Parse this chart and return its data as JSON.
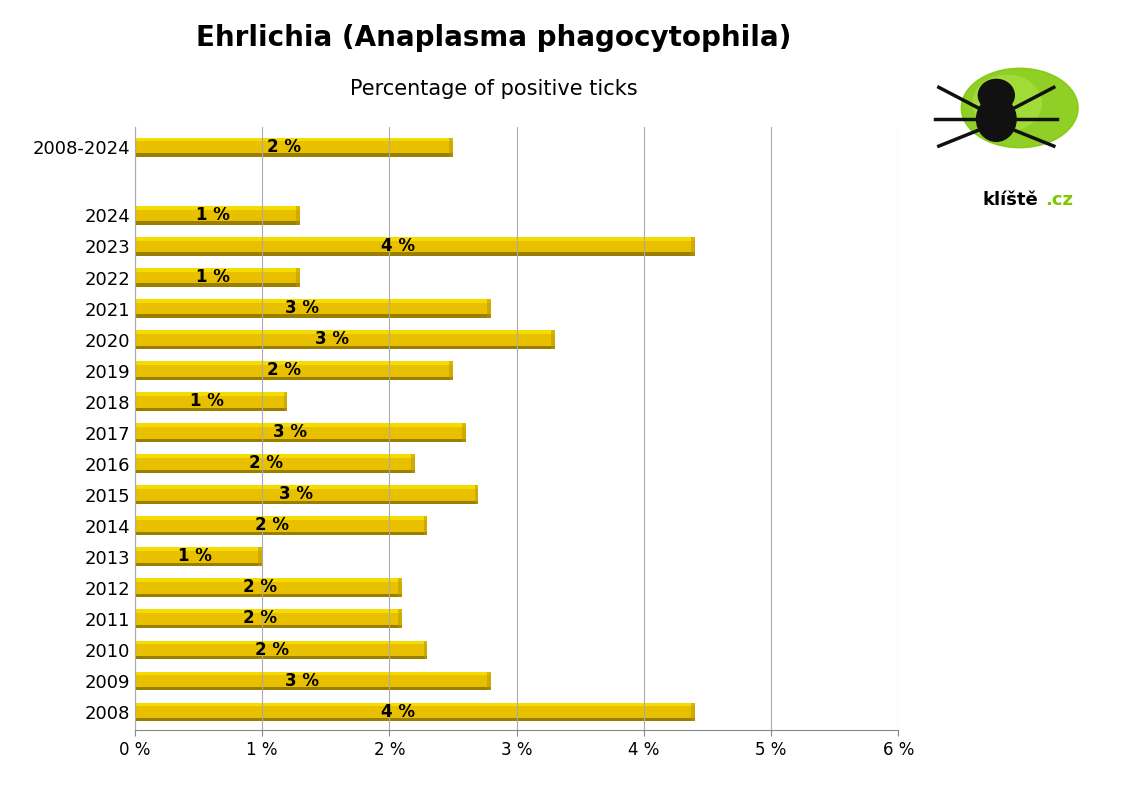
{
  "title_display": "Ehrlichia (Anaplasma phagocytophila)",
  "subtitle": "Percentage of positive ticks",
  "categories": [
    "2008-2024",
    "2024",
    "2023",
    "2022",
    "2021",
    "2020",
    "2019",
    "2018",
    "2017",
    "2016",
    "2015",
    "2014",
    "2013",
    "2012",
    "2011",
    "2010",
    "2009",
    "2008"
  ],
  "values": [
    2.5,
    1.3,
    4.4,
    1.3,
    2.8,
    3.3,
    2.5,
    1.2,
    2.6,
    2.2,
    2.7,
    2.3,
    1.0,
    2.1,
    2.1,
    2.3,
    2.8,
    4.4
  ],
  "labels": [
    "2 %",
    "1 %",
    "4 %",
    "1 %",
    "3 %",
    "3 %",
    "2 %",
    "1 %",
    "3 %",
    "2 %",
    "3 %",
    "2 %",
    "1 %",
    "2 %",
    "2 %",
    "2 %",
    "3 %",
    "4 %"
  ],
  "bar_main_color": "#E8C000",
  "bar_top_color": "#F5DC00",
  "bar_bottom_color": "#B89600",
  "bar_shadow_color": "#9A7E00",
  "xlim": [
    0,
    6
  ],
  "xticks": [
    0,
    1,
    2,
    3,
    4,
    5,
    6
  ],
  "xtick_labels": [
    "0 %",
    "1 %",
    "2 %",
    "3 %",
    "4 %",
    "5 %",
    "6 %"
  ],
  "bg_color": "#ffffff",
  "grid_color": "#aaaaaa",
  "label_fontsize": 12,
  "title_fontsize": 20,
  "subtitle_fontsize": 15,
  "ytick_fontsize": 13
}
